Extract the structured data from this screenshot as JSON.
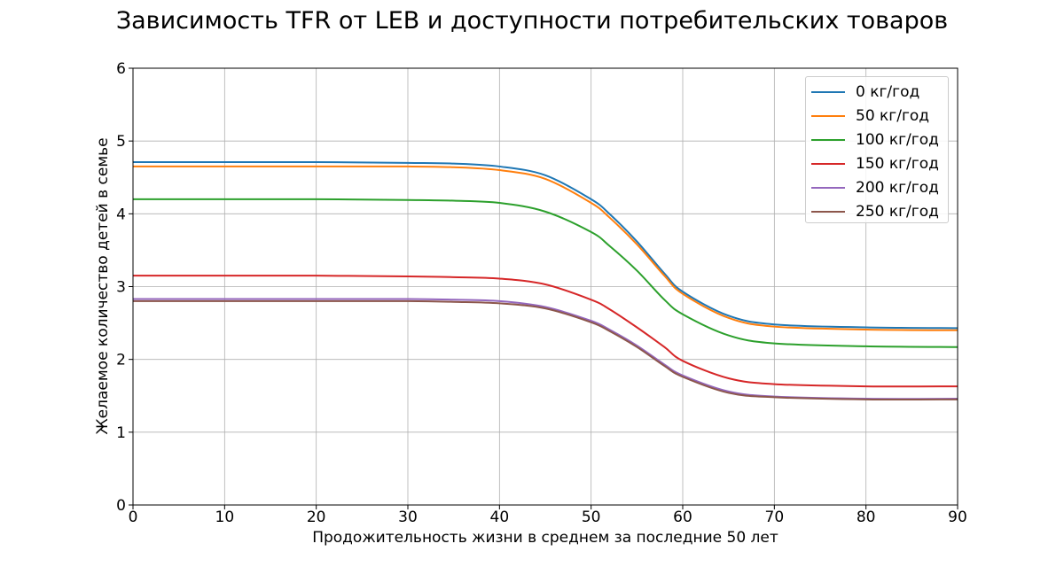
{
  "chart_data": {
    "type": "line",
    "title": "Зависимость TFR от LEB и доступности потребительских товаров",
    "xlabel": "Продожительность жизни в среднем за последние 50 лет",
    "ylabel": "Желаемое количество детей в семье",
    "xlim": [
      0,
      90
    ],
    "ylim": [
      0,
      6
    ],
    "x_ticks": [
      0,
      10,
      20,
      30,
      40,
      50,
      60,
      70,
      80,
      90
    ],
    "y_ticks": [
      0,
      1,
      2,
      3,
      4,
      5,
      6
    ],
    "grid": true,
    "legend_position": "top-right",
    "x": [
      0,
      10,
      20,
      30,
      35,
      40,
      45,
      50,
      52,
      55,
      58,
      60,
      65,
      70,
      80,
      90
    ],
    "series": [
      {
        "name": "0 кг/год",
        "color": "#1f77b4",
        "values": [
          4.71,
          4.71,
          4.71,
          4.7,
          4.69,
          4.65,
          4.53,
          4.2,
          4.0,
          3.62,
          3.18,
          2.93,
          2.6,
          2.48,
          2.44,
          2.43
        ]
      },
      {
        "name": "50 кг/год",
        "color": "#ff7f0e",
        "values": [
          4.65,
          4.65,
          4.65,
          4.65,
          4.64,
          4.6,
          4.48,
          4.15,
          3.95,
          3.58,
          3.15,
          2.9,
          2.57,
          2.45,
          2.41,
          2.4
        ]
      },
      {
        "name": "100 кг/год",
        "color": "#2ca02c",
        "values": [
          4.2,
          4.2,
          4.2,
          4.19,
          4.18,
          4.15,
          4.03,
          3.75,
          3.56,
          3.22,
          2.82,
          2.62,
          2.33,
          2.22,
          2.18,
          2.17
        ]
      },
      {
        "name": "150 кг/год",
        "color": "#d62728",
        "values": [
          3.15,
          3.15,
          3.15,
          3.14,
          3.13,
          3.11,
          3.03,
          2.82,
          2.69,
          2.44,
          2.17,
          1.98,
          1.74,
          1.66,
          1.63,
          1.63
        ]
      },
      {
        "name": "200 кг/год",
        "color": "#9467bd",
        "values": [
          2.83,
          2.83,
          2.83,
          2.83,
          2.82,
          2.8,
          2.72,
          2.53,
          2.41,
          2.19,
          1.93,
          1.78,
          1.56,
          1.49,
          1.46,
          1.46
        ]
      },
      {
        "name": "250 кг/год",
        "color": "#8c564b",
        "values": [
          2.8,
          2.8,
          2.8,
          2.8,
          2.79,
          2.77,
          2.7,
          2.51,
          2.39,
          2.17,
          1.91,
          1.76,
          1.54,
          1.48,
          1.45,
          1.45
        ]
      }
    ]
  }
}
